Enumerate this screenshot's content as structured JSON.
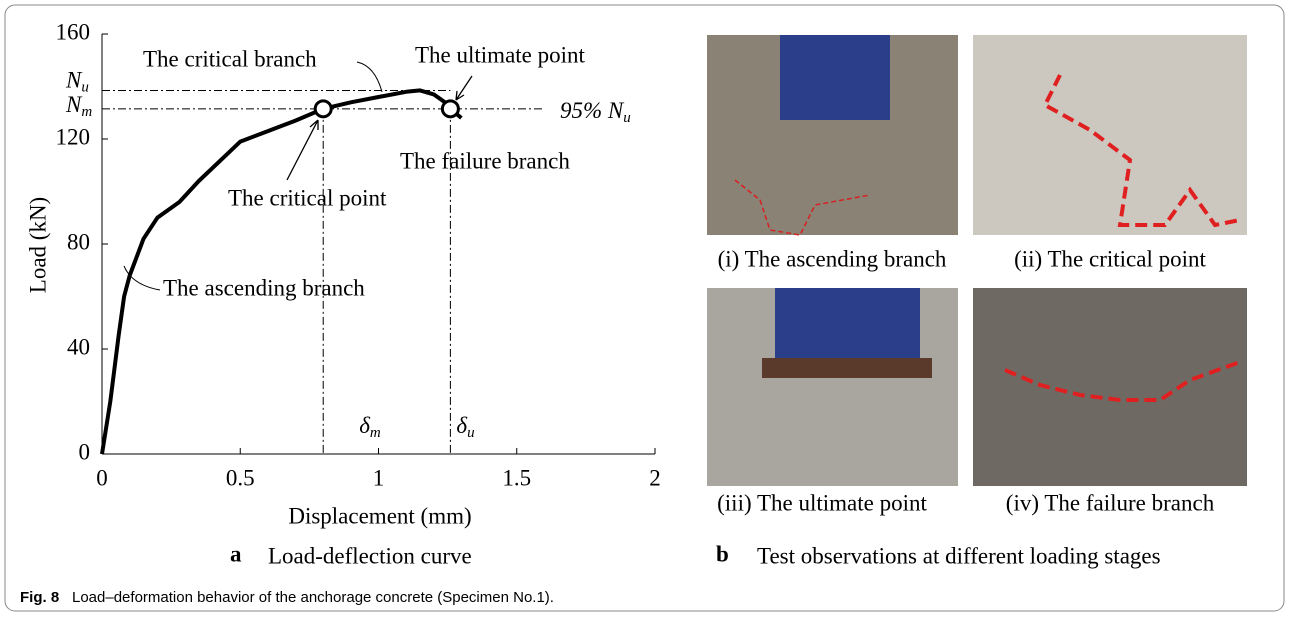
{
  "chart_data": {
    "type": "line",
    "panel": "a",
    "caption": "Load-deflection curve",
    "xlabel": "Displacement (mm)",
    "ylabel": "Load (kN)",
    "x": [
      0,
      0.03,
      0.06,
      0.08,
      0.1,
      0.15,
      0.2,
      0.28,
      0.35,
      0.45,
      0.5,
      0.6,
      0.7,
      0.8,
      0.9,
      1.0,
      1.1,
      1.15,
      1.2,
      1.24,
      1.26,
      1.3
    ],
    "values": [
      0,
      20,
      45,
      60,
      68,
      82,
      90,
      96,
      104,
      114,
      119,
      123,
      127,
      131.5,
      134,
      136,
      138,
      138.5,
      137,
      134,
      131.5,
      128
    ],
    "color": "#000000",
    "xlim": [
      0,
      2
    ],
    "ylim": [
      0,
      160
    ],
    "xticks": [
      0,
      0.5,
      1,
      1.5,
      2
    ],
    "yticks": [
      0,
      40,
      80,
      120,
      160
    ],
    "markers": {
      "x": [
        0.8,
        1.26
      ],
      "y": [
        131.5,
        131.5
      ]
    },
    "hlines": [
      {
        "value": 138.5,
        "label": "N",
        "sub": "u"
      },
      {
        "value": 131.5,
        "label": "N",
        "sub": "m"
      }
    ],
    "vlines": [
      {
        "value": 0.8,
        "label": "δ",
        "sub": "m"
      },
      {
        "value": 1.26,
        "label": "δ",
        "sub": "u"
      }
    ],
    "ratio_label": {
      "text": "95% N",
      "sub": "u"
    },
    "annotations": [
      "The critical branch",
      "The ultimate point",
      "The failure branch",
      "The critical point",
      "The ascending branch"
    ]
  },
  "photos": {
    "panel": "b",
    "caption": "Test observations at different loading stages",
    "items": [
      {
        "caption": "(i) The ascending branch"
      },
      {
        "caption": "(ii) The critical point"
      },
      {
        "caption": "(iii) The ultimate point"
      },
      {
        "caption": "(iv) The failure branch"
      }
    ]
  },
  "figure": {
    "label": "Fig. 8",
    "caption": "Load–deformation behavior of the anchorage concrete (Specimen No.1)."
  }
}
